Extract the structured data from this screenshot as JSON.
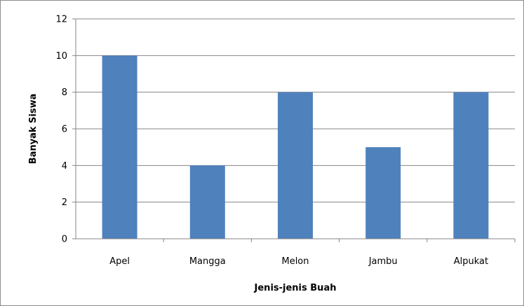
{
  "chart_data": {
    "type": "bar",
    "categories": [
      "Apel",
      "Mangga",
      "Melon",
      "Jambu",
      "Alpukat"
    ],
    "values": [
      10,
      4,
      8,
      5,
      8
    ],
    "title": "",
    "xlabel": "Jenis-jenis Buah",
    "ylabel": "Banyak Siswa",
    "ylim": [
      0,
      12
    ],
    "yticks": [
      0,
      2,
      4,
      6,
      8,
      10,
      12
    ],
    "grid": true,
    "legend": "none",
    "bar_color": "#4f81bd",
    "grid_color": "#868686"
  }
}
